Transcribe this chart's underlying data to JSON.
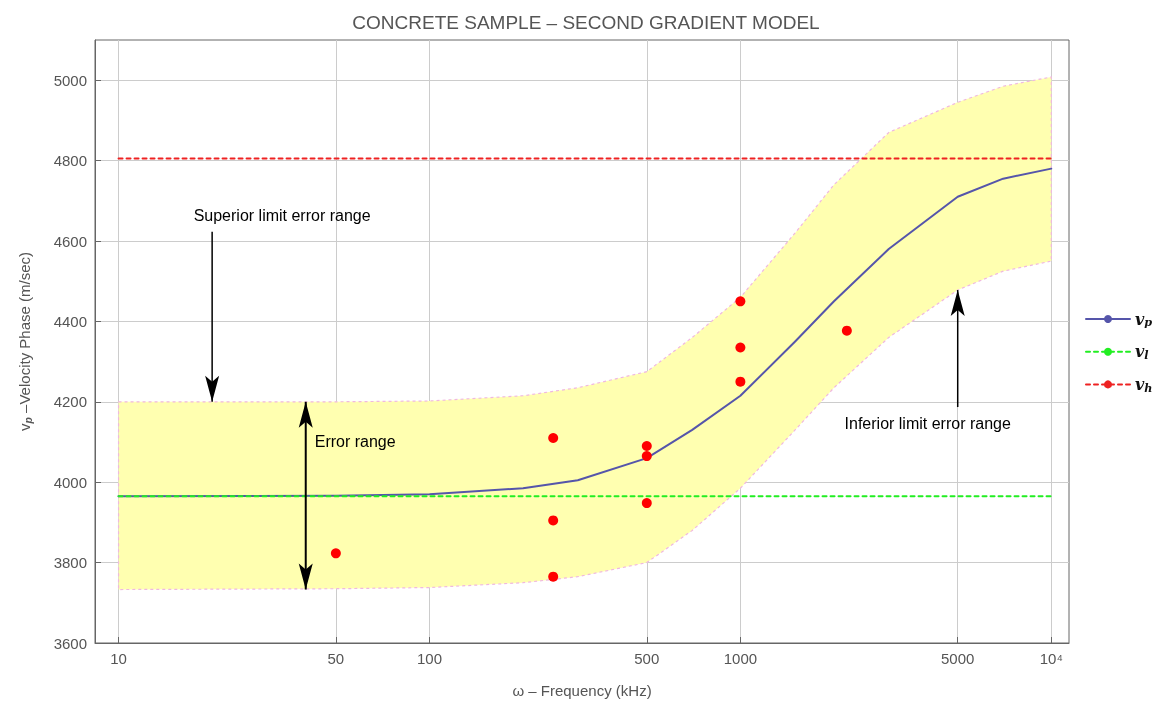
{
  "chart_data": {
    "type": "line",
    "title": "CONCRETE SAMPLE – SECOND GRADIENT MODEL",
    "xlabel": "ω – Frequency (kHz)",
    "ylabel": "v$_{p}$ –Velocity Phase (m/sec)",
    "log": "x",
    "xlim": [
      8.4,
      11400
    ],
    "xticks": [
      10,
      50,
      100,
      500,
      1000,
      5000,
      {
        "value": 10000,
        "label": "10⁴"
      }
    ],
    "ylim": [
      3600,
      5100
    ],
    "yticks": [
      3600,
      3800,
      4000,
      4200,
      4400,
      4600,
      4800,
      5000
    ],
    "grid": true,
    "legend": "right",
    "series": [
      {
        "name": "v$_{p}$",
        "color": "#5555aa",
        "line_style": "solid",
        "marker": "none",
        "x": [
          10,
          50,
          100,
          200,
          300,
          500,
          700,
          1000,
          1500,
          2000,
          3000,
          5000,
          7000,
          10000
        ],
        "values": [
          3965,
          3966,
          3970,
          3985,
          4005,
          4060,
          4130,
          4215,
          4350,
          4450,
          4580,
          4710,
          4755,
          4780
        ],
        "lower": [
          3733,
          3735,
          3738,
          3750,
          3765,
          3800,
          3880,
          3985,
          4130,
          4235,
          4360,
          4478,
          4525,
          4550
        ],
        "upper": [
          4200,
          4200,
          4202,
          4215,
          4235,
          4275,
          4360,
          4460,
          4620,
          4740,
          4870,
          4945,
          4985,
          5008
        ]
      },
      {
        "name": "v$_{l}$",
        "color": "#22ee22",
        "line_style": "dashed",
        "marker": "none",
        "x": [
          10,
          10000
        ],
        "values": [
          3965,
          3965
        ]
      },
      {
        "name": "v$_{h}$",
        "color": "#ee2222",
        "line_style": "dashed",
        "marker": "none",
        "x": [
          10,
          10000
        ],
        "values": [
          4805,
          4805
        ]
      },
      {
        "type": "scatter",
        "color": "#ff0000",
        "marker": "circle",
        "x": [
          50,
          250,
          250,
          250,
          500,
          500,
          500,
          1000,
          1000,
          1000,
          2200
        ],
        "values": [
          3823,
          4110,
          3905,
          3765,
          4090,
          4065,
          3948,
          4450,
          4335,
          4250,
          4377
        ]
      }
    ],
    "annotations": [
      {
        "text": "Superior limit error range",
        "x": 20,
        "y": 4200
      },
      {
        "text": "Error range",
        "x": 40,
        "y": 4200
      },
      {
        "text": "Inferior limit error range",
        "x": 5000,
        "y": 4478
      }
    ]
  }
}
